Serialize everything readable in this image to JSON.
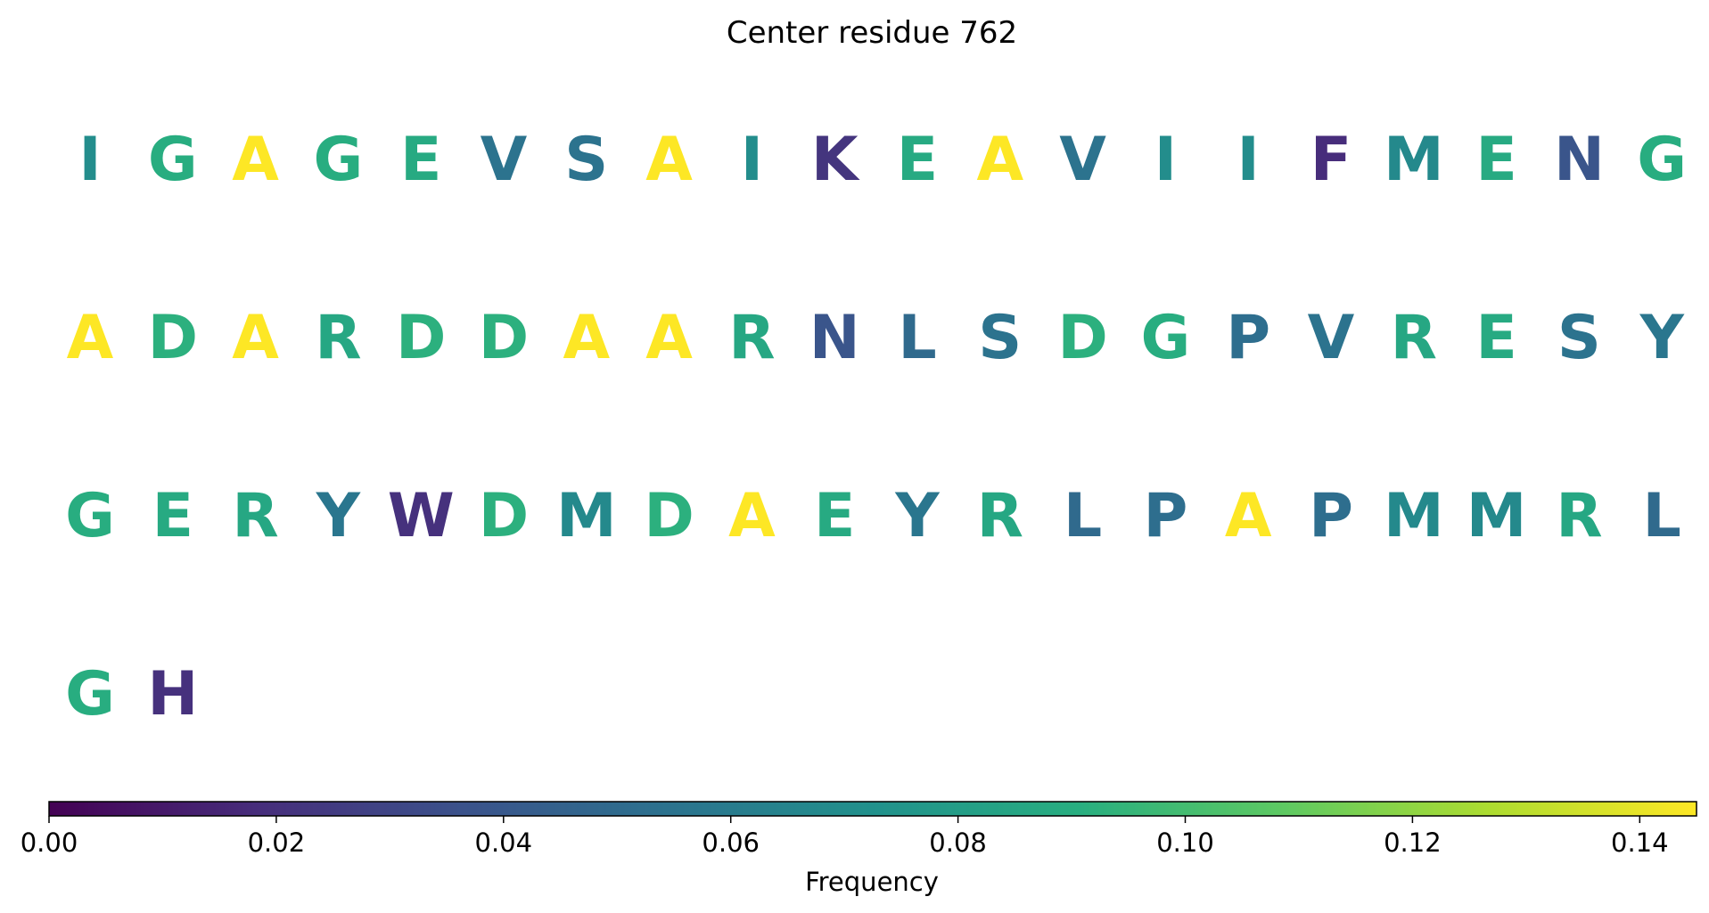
{
  "chart_data": {
    "type": "heatmap",
    "title": "Center residue 762",
    "colormap": "viridis",
    "colorbar": {
      "label": "Frequency",
      "range": [
        0,
        0.145
      ],
      "ticks": [
        0.0,
        0.02,
        0.04,
        0.06,
        0.08,
        0.1,
        0.12,
        0.14
      ],
      "tick_labels": [
        "0.00",
        "0.02",
        "0.04",
        "0.06",
        "0.08",
        "0.10",
        "0.12",
        "0.14"
      ],
      "orientation": "horizontal",
      "placement": "bottom"
    },
    "letters_per_row": 20,
    "residues": [
      {
        "letter": "I",
        "value": 0.07
      },
      {
        "letter": "G",
        "value": 0.09
      },
      {
        "letter": "A",
        "value": 0.145
      },
      {
        "letter": "G",
        "value": 0.09
      },
      {
        "letter": "E",
        "value": 0.088
      },
      {
        "letter": "V",
        "value": 0.055
      },
      {
        "letter": "S",
        "value": 0.055
      },
      {
        "letter": "A",
        "value": 0.145
      },
      {
        "letter": "I",
        "value": 0.07
      },
      {
        "letter": "K",
        "value": 0.022
      },
      {
        "letter": "E",
        "value": 0.088
      },
      {
        "letter": "A",
        "value": 0.145
      },
      {
        "letter": "V",
        "value": 0.055
      },
      {
        "letter": "I",
        "value": 0.07
      },
      {
        "letter": "I",
        "value": 0.07
      },
      {
        "letter": "F",
        "value": 0.018
      },
      {
        "letter": "M",
        "value": 0.068
      },
      {
        "letter": "E",
        "value": 0.088
      },
      {
        "letter": "N",
        "value": 0.038
      },
      {
        "letter": "G",
        "value": 0.09
      },
      {
        "letter": "A",
        "value": 0.145
      },
      {
        "letter": "D",
        "value": 0.092
      },
      {
        "letter": "A",
        "value": 0.145
      },
      {
        "letter": "R",
        "value": 0.086
      },
      {
        "letter": "D",
        "value": 0.092
      },
      {
        "letter": "D",
        "value": 0.092
      },
      {
        "letter": "A",
        "value": 0.145
      },
      {
        "letter": "A",
        "value": 0.145
      },
      {
        "letter": "R",
        "value": 0.086
      },
      {
        "letter": "N",
        "value": 0.038
      },
      {
        "letter": "L",
        "value": 0.05
      },
      {
        "letter": "S",
        "value": 0.055
      },
      {
        "letter": "D",
        "value": 0.092
      },
      {
        "letter": "G",
        "value": 0.09
      },
      {
        "letter": "P",
        "value": 0.052
      },
      {
        "letter": "V",
        "value": 0.055
      },
      {
        "letter": "R",
        "value": 0.086
      },
      {
        "letter": "E",
        "value": 0.088
      },
      {
        "letter": "S",
        "value": 0.055
      },
      {
        "letter": "Y",
        "value": 0.057
      },
      {
        "letter": "G",
        "value": 0.09
      },
      {
        "letter": "E",
        "value": 0.088
      },
      {
        "letter": "R",
        "value": 0.086
      },
      {
        "letter": "Y",
        "value": 0.057
      },
      {
        "letter": "W",
        "value": 0.02
      },
      {
        "letter": "D",
        "value": 0.092
      },
      {
        "letter": "M",
        "value": 0.068
      },
      {
        "letter": "D",
        "value": 0.092
      },
      {
        "letter": "A",
        "value": 0.145
      },
      {
        "letter": "E",
        "value": 0.088
      },
      {
        "letter": "Y",
        "value": 0.057
      },
      {
        "letter": "R",
        "value": 0.086
      },
      {
        "letter": "L",
        "value": 0.05
      },
      {
        "letter": "P",
        "value": 0.052
      },
      {
        "letter": "A",
        "value": 0.145
      },
      {
        "letter": "P",
        "value": 0.052
      },
      {
        "letter": "M",
        "value": 0.068
      },
      {
        "letter": "M",
        "value": 0.068
      },
      {
        "letter": "R",
        "value": 0.086
      },
      {
        "letter": "L",
        "value": 0.05
      },
      {
        "letter": "G",
        "value": 0.09
      },
      {
        "letter": "H",
        "value": 0.02
      }
    ]
  }
}
